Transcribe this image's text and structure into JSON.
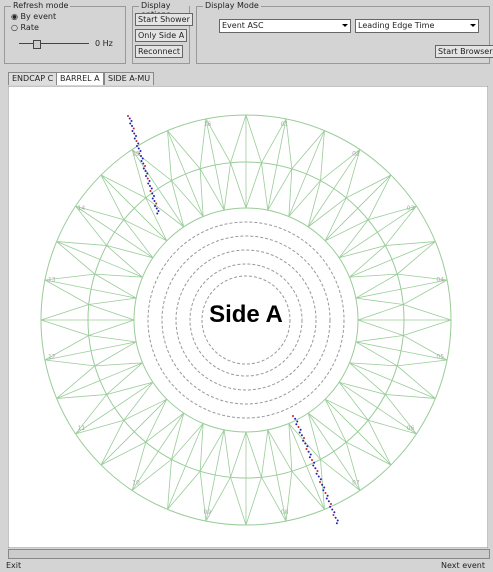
{
  "refresh_mode": {
    "title": "Refresh mode",
    "options": [
      "By event",
      "Rate"
    ],
    "rate_label": "0 Hz"
  },
  "display_options": {
    "title": "Display options",
    "buttons": [
      "Start Shower",
      "Only Side A",
      "Reconnect"
    ]
  },
  "display_mode": {
    "title": "Display Mode",
    "selects": [
      "Event ASC",
      "Leading Edge Time"
    ],
    "button": "Start Browser"
  },
  "tabs": [
    "ENDCAP C",
    "BARREL A",
    "SIDE A-MU"
  ],
  "canvas": {
    "label": "Side A",
    "sector_labels": [
      "01",
      "02",
      "03",
      "04",
      "05",
      "06",
      "07",
      "08",
      "09",
      "10",
      "11",
      "12",
      "13",
      "14",
      "15",
      "16"
    ]
  },
  "status": {
    "left": "Exit",
    "right": "Next event"
  }
}
